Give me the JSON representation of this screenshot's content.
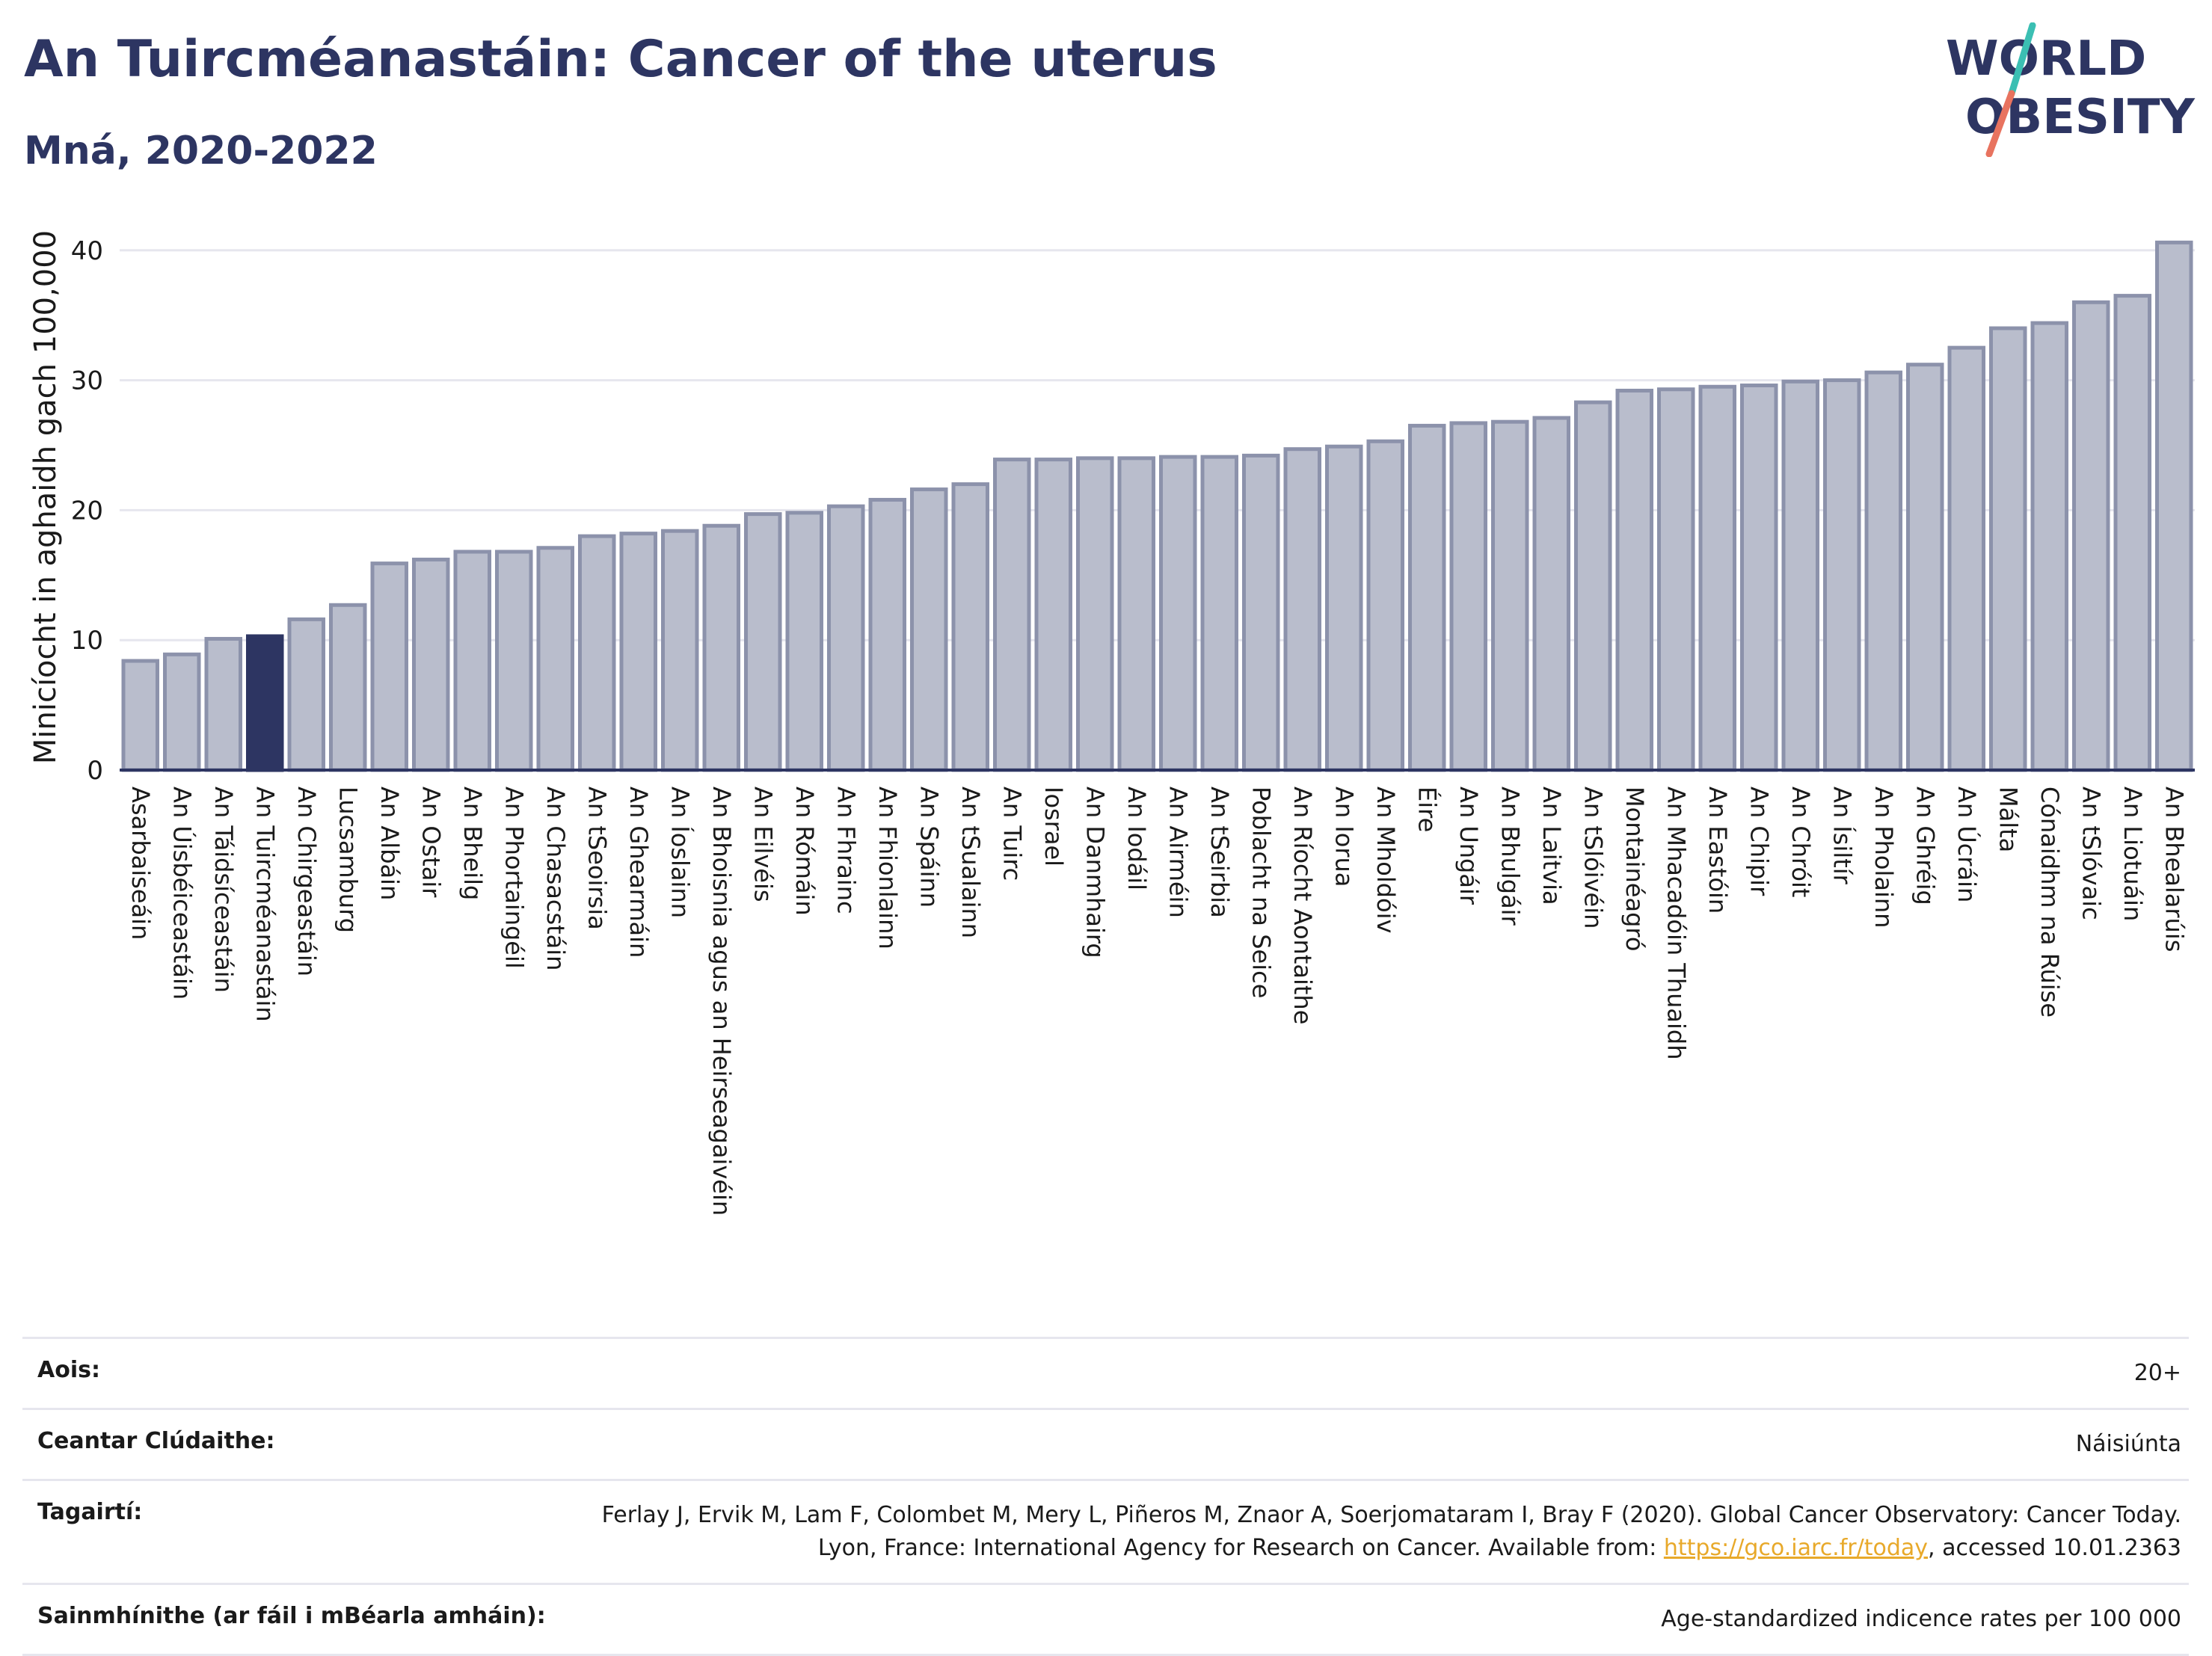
{
  "header": {
    "title": "An Tuircméanastáin: Cancer of the uterus",
    "subtitle": "Mná, 2020-2022"
  },
  "logo": {
    "line1": "WORLD",
    "line2": "OBESITY",
    "accent_teal": "#3bbfb3",
    "accent_coral": "#e8735f",
    "color": "#2d3562"
  },
  "chart_data": {
    "type": "bar",
    "ylabel": "Minicíocht in aghaidh gach 100,000",
    "xlabel": "",
    "ylim": [
      0,
      42
    ],
    "yticks": [
      0,
      10,
      20,
      30,
      40
    ],
    "grid": true,
    "highlight_category": "An Tuircméanastáin",
    "colors": {
      "bar": "#b9bdcc",
      "bar_edge": "#8c92ab",
      "highlight": "#2d3562"
    },
    "categories": [
      "Asarbaiseáin",
      "An Úisbéiceastáin",
      "An Táidsíceastáin",
      "An Tuircméanastáin",
      "An Chirgeastáin",
      "Lucsamburg",
      "An Albáin",
      "An Ostair",
      "An Bheilg",
      "An Phortaingéil",
      "An Chasacstáin",
      "An tSeoirsia",
      "An Ghearmáin",
      "An Íoslainn",
      "An Bhoisnia agus an Heirseagaivéin",
      "An Eilvéis",
      "An Rómáin",
      "An Fhrainc",
      "An Fhionlainn",
      "An Spáinn",
      "An tSualainn",
      "An Tuirc",
      "Iosrael",
      "An Danmhairg",
      "An Iodáil",
      "An Airméin",
      "An tSeirbia",
      "Poblacht na Seice",
      "An Ríocht Aontaithe",
      "An Iorua",
      "An Mholdóiv",
      "Éire",
      "An Ungáir",
      "An Bhulgáir",
      "An Laitvia",
      "An tSlóivéin",
      "Montainéagró",
      "An Mhacadóin Thuaidh",
      "An Eastóin",
      "An Chipir",
      "An Chróit",
      "An Ísiltír",
      "An Pholainn",
      "An Ghréig",
      "An Úcráin",
      "Málta",
      "Cónaidhm na Rúise",
      "An tSlóvaic",
      "An Liotuáin",
      "An Bhealarúis"
    ],
    "values": [
      8.4,
      8.9,
      10.1,
      10.3,
      11.6,
      12.7,
      15.9,
      16.2,
      16.8,
      16.8,
      17.1,
      18.0,
      18.2,
      18.4,
      18.8,
      19.7,
      19.8,
      20.3,
      20.8,
      21.6,
      22.0,
      23.9,
      23.9,
      24.0,
      24.0,
      24.1,
      24.1,
      24.2,
      24.7,
      24.9,
      25.3,
      26.5,
      26.7,
      26.8,
      27.1,
      28.3,
      29.2,
      29.3,
      29.5,
      29.6,
      29.9,
      30.0,
      30.6,
      31.2,
      32.5,
      34.0,
      34.4,
      36.0,
      36.5,
      40.6
    ]
  },
  "meta": [
    {
      "label": "Aois:",
      "value": "20+"
    },
    {
      "label": "Ceantar Clúdaithe:",
      "value": "Náisiúnta"
    },
    {
      "label": "Tagairtí:",
      "value_pre": "Ferlay J, Ervik M, Lam F, Colombet M, Mery L, Piñeros M, Znaor A, Soerjomataram I, Bray F (2020). Global Cancer Observatory: Cancer Today. Lyon, France: International Agency for Research on Cancer. Available from: ",
      "link": "https://gco.iarc.fr/today",
      "value_post": ", accessed 10.01.2363"
    },
    {
      "label": "Sainmhínithe (ar fáil i mBéarla amháin):",
      "value": "Age-standardized indicence rates per 100 000"
    }
  ]
}
